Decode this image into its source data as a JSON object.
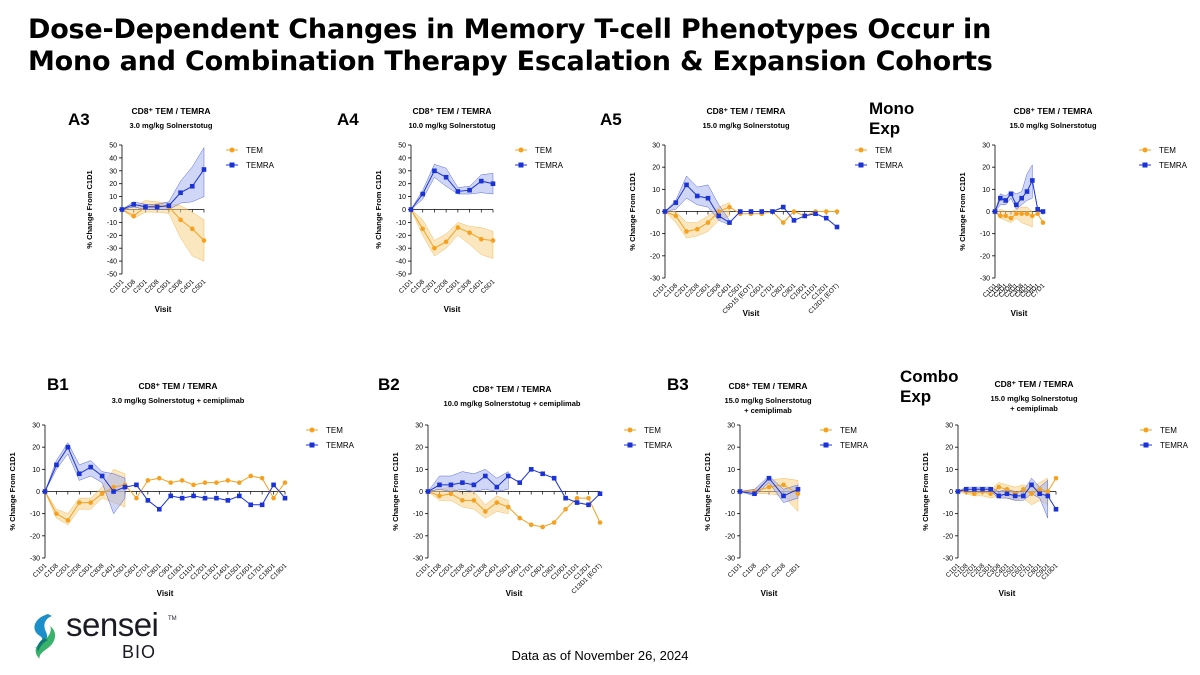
{
  "title_line1": "Dose-Dependent Changes in Memory T-cell Phenotypes Occur in",
  "title_line2": "Mono and Combination Therapy Escalation & Expansion Cohorts",
  "footer": "Data as of November 26, 2024",
  "logo": {
    "word": "sensei",
    "sub": "BIO",
    "tm": "TM"
  },
  "colors": {
    "TEM": "#f5a11f",
    "TEMRA": "#1a32d6",
    "TEM_band": "#f7d48a",
    "TEMRA_band": "#a9b6ee"
  },
  "chart_data": [
    {
      "type": "line",
      "panel_label": "A3",
      "title": "CD8⁺ TEM / TEMRA",
      "subtitle": [
        "3.0 mg/kg Solnerstotug"
      ],
      "xlabel": "Visit",
      "ylabel": "% Change From C1D1",
      "ylim": [
        -50,
        50
      ],
      "ytick_step": 10,
      "categories": [
        "C1D1",
        "C1D8",
        "C2D1",
        "C2D8",
        "C3D1",
        "C3D8",
        "C4D1",
        "C5D1"
      ],
      "series": [
        {
          "name": "TEM",
          "values": [
            0,
            -5,
            2,
            3,
            2,
            -8,
            -15,
            -24
          ],
          "band_low": [
            0,
            -7,
            -2,
            -2,
            -3,
            -22,
            -36,
            -40
          ],
          "band_high": [
            0,
            2,
            7,
            6,
            5,
            3,
            -2,
            -8
          ]
        },
        {
          "name": "TEMRA",
          "values": [
            0,
            4,
            2,
            2,
            3,
            13,
            18,
            31
          ],
          "band_low": [
            0,
            2,
            0,
            0,
            0,
            5,
            6,
            10
          ],
          "band_high": [
            0,
            6,
            4,
            4,
            6,
            22,
            33,
            48
          ]
        }
      ]
    },
    {
      "type": "line",
      "panel_label": "A4",
      "title": "CD8⁺ TEM / TEMRA",
      "subtitle": [
        "10.0 mg/kg Solnerstotug"
      ],
      "xlabel": "Visit",
      "ylabel": "% Change From C1D1",
      "ylim": [
        -50,
        50
      ],
      "ytick_step": 10,
      "categories": [
        "C1D1",
        "C1D8",
        "C2D1",
        "C2D8",
        "C3D1",
        "C3D8",
        "C4D1",
        "C5D1"
      ],
      "series": [
        {
          "name": "TEM",
          "values": [
            0,
            -15,
            -30,
            -25,
            -14,
            -18,
            -23,
            -24
          ],
          "band_low": [
            0,
            -20,
            -36,
            -30,
            -20,
            -27,
            -35,
            -38
          ],
          "band_high": [
            0,
            -8,
            -24,
            -19,
            -10,
            -13,
            -14,
            -17
          ]
        },
        {
          "name": "TEMRA",
          "values": [
            0,
            12,
            30,
            25,
            14,
            15,
            22,
            20
          ],
          "band_low": [
            0,
            8,
            25,
            18,
            12,
            12,
            13,
            12
          ],
          "band_high": [
            0,
            15,
            35,
            32,
            17,
            18,
            27,
            28
          ]
        }
      ]
    },
    {
      "type": "line",
      "panel_label": "A5",
      "title": "CD8⁺ TEM / TEMRA",
      "subtitle": [
        "15.0 mg/kg Solnerstotug"
      ],
      "xlabel": "Visit",
      "ylabel": "% Change From C1D1",
      "ylim": [
        -30,
        30
      ],
      "ytick_step": 10,
      "categories": [
        "C1D1",
        "C1D8",
        "C2D1",
        "C2D8",
        "C3D1",
        "C3D8",
        "C4D1",
        "C5D1",
        "C5D15 (EOT)",
        "C6D1",
        "C7D1",
        "C8D1",
        "C9D1",
        "C10D1",
        "C11D1",
        "C12D1",
        "C13D1 (EOT)"
      ],
      "series": [
        {
          "name": "TEM",
          "values": [
            0,
            -2,
            -9,
            -8,
            -5,
            0,
            2,
            -1,
            -1,
            -1,
            0,
            -5,
            0,
            -2,
            0,
            0,
            0
          ],
          "band_low": [
            0,
            -5,
            -12,
            -11,
            -9,
            -4,
            -2,
            null,
            null,
            null,
            null,
            null,
            null,
            null,
            null,
            null,
            null
          ],
          "band_high": [
            0,
            0,
            -5,
            -5,
            -2,
            2,
            4,
            null,
            null,
            null,
            null,
            null,
            null,
            null,
            null,
            null,
            null
          ]
        },
        {
          "name": "TEMRA",
          "values": [
            0,
            4,
            12,
            7,
            6,
            -2,
            -5,
            0,
            0,
            0,
            0,
            2,
            -4,
            -2,
            -1,
            -3,
            -7
          ],
          "band_low": [
            0,
            1,
            6,
            3,
            2,
            -4,
            -6,
            null,
            null,
            null,
            null,
            null,
            null,
            null,
            null,
            null,
            null
          ],
          "band_high": [
            0,
            5,
            16,
            11,
            12,
            3,
            -4,
            null,
            null,
            null,
            null,
            null,
            null,
            null,
            null,
            null,
            null
          ]
        }
      ]
    },
    {
      "type": "line",
      "panel_label": "Mono\nExp",
      "title": "CD8⁺ TEM / TEMRA",
      "subtitle": [
        "15.0 mg/kg Solnerstotug"
      ],
      "xlabel": "Visit",
      "ylabel": "% Change From C1D1",
      "ylim": [
        -30,
        30
      ],
      "ytick_step": 10,
      "categories": [
        "C1D1",
        "C1D8",
        "C2D1",
        "C2D8",
        "C3D1",
        "C3D8",
        "C4D1",
        "C5D1",
        "C6D1",
        "C7D1"
      ],
      "series": [
        {
          "name": "TEM",
          "values": [
            0,
            -2,
            -2,
            -3,
            -1,
            -1,
            -1,
            -2,
            -1,
            -5
          ],
          "band_low": [
            0,
            -3,
            -4,
            -5,
            -3,
            -5,
            -6,
            -7,
            null,
            null
          ],
          "band_high": [
            0,
            1,
            0,
            0,
            1,
            2,
            2,
            0,
            null,
            null
          ]
        },
        {
          "name": "TEMRA",
          "values": [
            0,
            6,
            5,
            8,
            3,
            6,
            9,
            14,
            1,
            0
          ],
          "band_low": [
            0,
            3,
            3,
            6,
            1,
            3,
            5,
            6,
            null,
            null
          ],
          "band_high": [
            0,
            8,
            7,
            9,
            8,
            9,
            17,
            21,
            null,
            null
          ]
        }
      ]
    },
    {
      "type": "line",
      "panel_label": "B1",
      "title": "CD8⁺ TEM / TEMRA",
      "subtitle": [
        "3.0 mg/kg Solnerstotug + cemiplimab"
      ],
      "xlabel": "Visit",
      "ylabel": "% Change From C1D1",
      "ylim": [
        -30,
        30
      ],
      "ytick_step": 10,
      "categories": [
        "C1D1",
        "C1D8",
        "C2D1",
        "C2D8",
        "C3D1",
        "C3D8",
        "C4D1",
        "C5D1",
        "C6D1",
        "C7D1",
        "C8D1",
        "C9D1",
        "C10D1",
        "C11D1",
        "C12D1",
        "C13D1",
        "C14D1",
        "C15D1",
        "C16D1",
        "C17D1",
        "C18D1",
        "C19D1"
      ],
      "series": [
        {
          "name": "TEM",
          "values": [
            0,
            -10,
            -13,
            -5,
            -5,
            -1,
            2,
            3,
            -3,
            5,
            6,
            4,
            5,
            3,
            4,
            4,
            5,
            4,
            7,
            6,
            -3,
            4
          ],
          "band_low": [
            0,
            -12,
            -15,
            -8,
            -8,
            -3,
            -5,
            -7,
            null,
            null,
            null,
            null,
            null,
            null,
            null,
            null,
            null,
            null,
            null,
            null,
            null,
            null
          ],
          "band_high": [
            0,
            -8,
            -10,
            -3,
            -3,
            2,
            10,
            8,
            null,
            null,
            null,
            null,
            null,
            null,
            null,
            null,
            null,
            null,
            null,
            null,
            null,
            null
          ]
        },
        {
          "name": "TEMRA",
          "values": [
            0,
            12,
            20,
            8,
            11,
            7,
            0,
            2,
            3,
            -4,
            -8,
            -2,
            -3,
            -2,
            -3,
            -3,
            -4,
            -2,
            -6,
            -6,
            3,
            -3
          ],
          "band_low": [
            0,
            10,
            17,
            5,
            7,
            4,
            -10,
            -3,
            null,
            null,
            null,
            null,
            null,
            null,
            null,
            null,
            null,
            null,
            null,
            null,
            null,
            null
          ],
          "band_high": [
            0,
            14,
            22,
            12,
            14,
            9,
            8,
            6,
            null,
            null,
            null,
            null,
            null,
            null,
            null,
            null,
            null,
            null,
            null,
            null,
            null,
            null
          ]
        }
      ]
    },
    {
      "type": "line",
      "panel_label": "B2",
      "title": "CD8⁺ TEM / TEMRA",
      "subtitle": [
        "10.0 mg/kg Solnerstotug + cemiplimab"
      ],
      "xlabel": "Visit",
      "ylabel": "% Change From C1D1",
      "ylim": [
        -30,
        30
      ],
      "ytick_step": 10,
      "categories": [
        "C1D1",
        "C1D8",
        "C2D1",
        "C2D8",
        "C3D1",
        "C3D8",
        "C4D1",
        "C5D1",
        "C6D1",
        "C7D1",
        "C8D1",
        "C9D1",
        "C10D1",
        "C11D1",
        "C12D1",
        "C13D1 (EOT)"
      ],
      "series": [
        {
          "name": "TEM",
          "values": [
            0,
            -2,
            -1,
            -4,
            -4,
            -9,
            -5,
            -7,
            -12,
            -15,
            -16,
            -14,
            -8,
            -3,
            -3,
            -14
          ],
          "band_low": [
            0,
            -4,
            -4,
            -7,
            -8,
            -12,
            -9,
            -10,
            null,
            null,
            null,
            null,
            null,
            null,
            null,
            null
          ],
          "band_high": [
            0,
            1,
            2,
            -1,
            0,
            -6,
            -2,
            -4,
            null,
            null,
            null,
            null,
            null,
            null,
            null,
            null
          ]
        },
        {
          "name": "TEMRA",
          "values": [
            0,
            3,
            3,
            4,
            3,
            7,
            2,
            7,
            4,
            10,
            8,
            6,
            -3,
            -5,
            -6,
            -1
          ],
          "band_low": [
            0,
            1,
            0,
            1,
            0,
            1,
            0,
            1,
            null,
            null,
            null,
            null,
            null,
            null,
            null,
            null
          ],
          "band_high": [
            0,
            7,
            7,
            9,
            8,
            10,
            6,
            9,
            null,
            null,
            null,
            null,
            null,
            null,
            null,
            null
          ]
        }
      ]
    },
    {
      "type": "line",
      "panel_label": "B3",
      "title": "CD8⁺ TEM / TEMRA",
      "subtitle": [
        "15.0 mg/kg Solnerstotug",
        "+ cemiplimab"
      ],
      "xlabel": "Visit",
      "ylabel": "% Change From C1D1",
      "ylim": [
        -30,
        30
      ],
      "ytick_step": 10,
      "categories": [
        "C1D1",
        "C1D8",
        "C2D1",
        "C2D8",
        "C3D1"
      ],
      "series": [
        {
          "name": "TEM",
          "values": [
            0,
            0,
            2,
            3,
            -1
          ],
          "band_low": [
            0,
            -1,
            -1,
            -2,
            -9
          ],
          "band_high": [
            0,
            1,
            5,
            6,
            5
          ]
        },
        {
          "name": "TEMRA",
          "values": [
            0,
            -1,
            6,
            -2,
            1
          ],
          "band_low": [
            0,
            -2,
            4,
            -5,
            -3
          ],
          "band_high": [
            0,
            1,
            7,
            1,
            3
          ]
        }
      ]
    },
    {
      "type": "line",
      "panel_label": "Combo\nExp",
      "title": "CD8⁺ TEM / TEMRA",
      "subtitle": [
        "15.0 mg/kg Solnerstotug",
        "+ cemiplimab"
      ],
      "xlabel": "Visit",
      "ylabel": "% Change From C1D1",
      "ylim": [
        -30,
        30
      ],
      "ytick_step": 10,
      "categories": [
        "C1D1",
        "C1D8",
        "C2D1",
        "C2D8",
        "C3D1",
        "C3D8",
        "C4D1",
        "C5D1",
        "C6D1",
        "C7D1",
        "C8D1",
        "C9D1",
        "C10D1"
      ],
      "series": [
        {
          "name": "TEM",
          "values": [
            0,
            0,
            -1,
            0,
            -1,
            2,
            1,
            -1,
            1,
            -1,
            1,
            0,
            6
          ],
          "band_low": [
            0,
            -1,
            -2,
            -2,
            -3,
            -2,
            -3,
            -4,
            -3,
            -6,
            -4,
            -6,
            null
          ],
          "band_high": [
            0,
            1,
            1,
            2,
            1,
            4,
            3,
            2,
            3,
            2,
            4,
            6,
            null
          ]
        },
        {
          "name": "TEMRA",
          "values": [
            0,
            1,
            1,
            1,
            1,
            -2,
            -1,
            -2,
            -2,
            3,
            -1,
            -2,
            -8
          ],
          "band_low": [
            0,
            0,
            0,
            0,
            0,
            -3,
            -3,
            -4,
            -4,
            -1,
            -3,
            -12,
            null
          ],
          "band_high": [
            0,
            2,
            2,
            2,
            2,
            0,
            1,
            0,
            0,
            6,
            2,
            5,
            null
          ]
        }
      ]
    }
  ]
}
